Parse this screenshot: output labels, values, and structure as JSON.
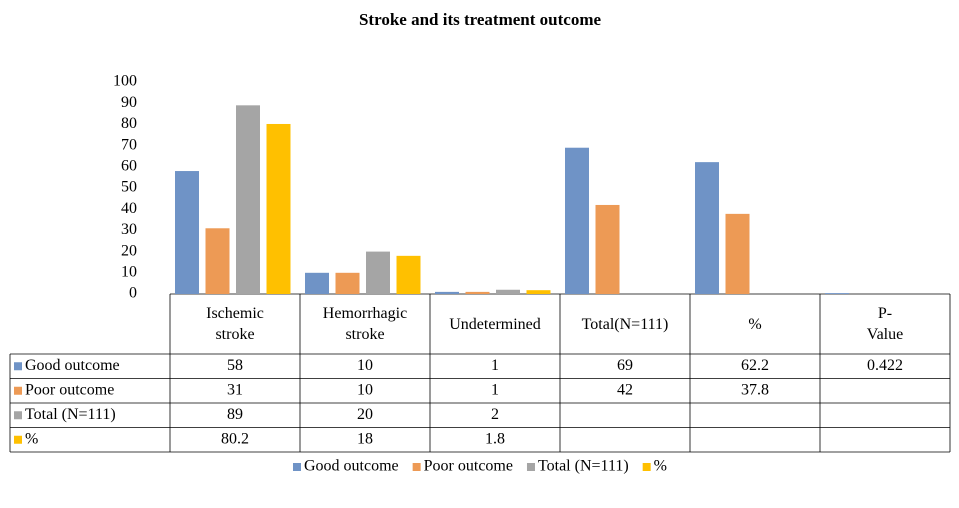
{
  "chart_data": {
    "type": "bar",
    "title": "Stroke and its treatment outcome",
    "categories": [
      "Ischemic stroke",
      "Hemorrhagic stroke",
      "Undetermined",
      "Total(N=111)",
      "%",
      "P-Value"
    ],
    "series": [
      {
        "name": "Good outcome",
        "color": "#6f93c6",
        "values": [
          58,
          10,
          1,
          69,
          62.2,
          0.422
        ]
      },
      {
        "name": "Poor outcome",
        "color": "#ed9a55",
        "values": [
          31,
          10,
          1,
          42,
          37.8,
          null
        ]
      },
      {
        "name": "Total (N=111)",
        "color": "#a5a5a5",
        "values": [
          89,
          20,
          2,
          null,
          null,
          null
        ]
      },
      {
        "name": "%",
        "color": "#ffc000",
        "values": [
          80.2,
          18,
          1.8,
          null,
          null,
          null
        ]
      }
    ],
    "ylim": [
      0,
      100
    ],
    "yticks": [
      0,
      10,
      20,
      30,
      40,
      50,
      60,
      70,
      80,
      90,
      100
    ]
  }
}
